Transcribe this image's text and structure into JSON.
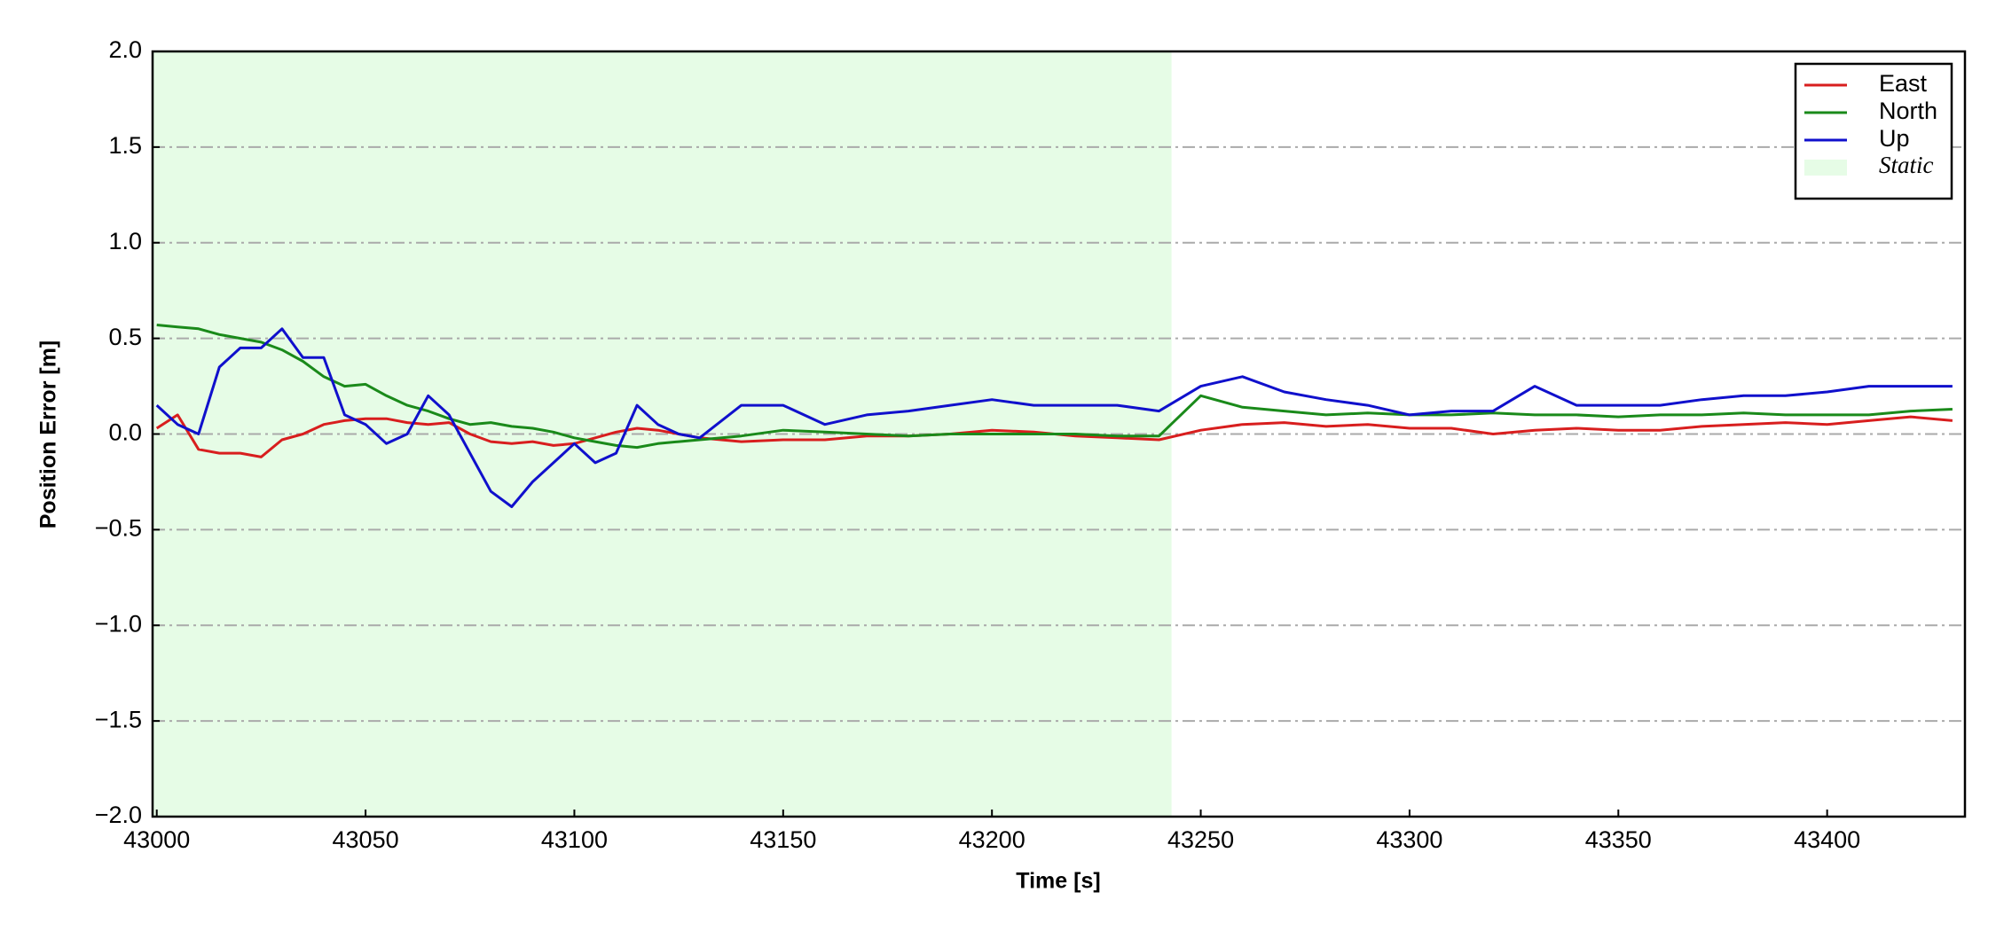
{
  "chart_data": {
    "type": "line",
    "xlabel": "Time [s]",
    "ylabel": "Position Error [m]",
    "x": [
      43000,
      43005,
      43010,
      43015,
      43020,
      43025,
      43030,
      43035,
      43040,
      43045,
      43050,
      43055,
      43060,
      43065,
      43070,
      43075,
      43080,
      43085,
      43090,
      43095,
      43100,
      43105,
      43110,
      43115,
      43120,
      43125,
      43130,
      43140,
      43150,
      43160,
      43170,
      43180,
      43190,
      43200,
      43210,
      43220,
      43230,
      43240,
      43250,
      43260,
      43270,
      43280,
      43290,
      43300,
      43310,
      43320,
      43330,
      43340,
      43350,
      43360,
      43370,
      43380,
      43390,
      43400,
      43410,
      43420,
      43430
    ],
    "series": [
      {
        "name": "East",
        "color": "#d81e1e",
        "values": [
          0.03,
          0.1,
          -0.08,
          -0.1,
          -0.1,
          -0.12,
          -0.03,
          0,
          0.05,
          0.07,
          0.08,
          0.08,
          0.06,
          0.05,
          0.06,
          0,
          -0.04,
          -0.05,
          -0.04,
          -0.06,
          -0.05,
          -0.02,
          0.01,
          0.03,
          0.02,
          0,
          -0.02,
          -0.04,
          -0.03,
          -0.03,
          -0.01,
          -0.01,
          0,
          0.02,
          0.01,
          -0.01,
          -0.02,
          -0.03,
          0.02,
          0.05,
          0.06,
          0.04,
          0.05,
          0.03,
          0.03,
          0,
          0.02,
          0.03,
          0.02,
          0.02,
          0.04,
          0.05,
          0.06,
          0.05,
          0.07,
          0.09,
          0.07
        ]
      },
      {
        "name": "North",
        "color": "#1a8a1a",
        "values": [
          0.57,
          0.56,
          0.55,
          0.52,
          0.5,
          0.48,
          0.44,
          0.38,
          0.3,
          0.25,
          0.26,
          0.2,
          0.15,
          0.12,
          0.08,
          0.05,
          0.06,
          0.04,
          0.03,
          0.01,
          -0.02,
          -0.04,
          -0.06,
          -0.07,
          -0.05,
          -0.04,
          -0.03,
          -0.01,
          0.02,
          0.01,
          0,
          -0.01,
          0,
          0,
          0,
          0,
          -0.01,
          -0.01,
          0.2,
          0.14,
          0.12,
          0.1,
          0.11,
          0.1,
          0.1,
          0.11,
          0.1,
          0.1,
          0.09,
          0.1,
          0.1,
          0.11,
          0.1,
          0.1,
          0.1,
          0.12,
          0.13
        ]
      },
      {
        "name": "Up",
        "color": "#1010cc",
        "values": [
          0.15,
          0.05,
          0,
          0.35,
          0.45,
          0.45,
          0.55,
          0.4,
          0.4,
          0.1,
          0.05,
          -0.05,
          0,
          0.2,
          0.1,
          -0.1,
          -0.3,
          -0.38,
          -0.25,
          -0.15,
          -0.05,
          -0.15,
          -0.1,
          0.15,
          0.05,
          0,
          -0.02,
          0.15,
          0.15,
          0.05,
          0.1,
          0.12,
          0.15,
          0.18,
          0.15,
          0.15,
          0.15,
          0.12,
          0.25,
          0.3,
          0.22,
          0.18,
          0.15,
          0.1,
          0.12,
          0.12,
          0.25,
          0.15,
          0.15,
          0.15,
          0.18,
          0.2,
          0.2,
          0.22,
          0.25,
          0.25,
          0.25
        ]
      }
    ],
    "shaded_regions": [
      {
        "name": "Static",
        "color": "#e6fce6",
        "x": [
          42999,
          43243
        ]
      }
    ],
    "xlim": [
      42999,
      43433
    ],
    "xticks": [
      43000,
      43050,
      43100,
      43150,
      43200,
      43250,
      43300,
      43350,
      43400
    ],
    "ylim": [
      -2,
      2
    ],
    "yticks": [
      {
        "value": -2,
        "label": "−2.0"
      },
      {
        "value": -1.5,
        "label": "−1.5"
      },
      {
        "value": -1,
        "label": "−1.0"
      },
      {
        "value": -0.5,
        "label": "−0.5"
      },
      {
        "value": 0,
        "label": "0.0"
      },
      {
        "value": 0.5,
        "label": "0.5"
      },
      {
        "value": 1,
        "label": "1.0"
      },
      {
        "value": 1.5,
        "label": "1.5"
      },
      {
        "value": 2,
        "label": "2.0"
      }
    ],
    "grid": true,
    "legend": "upper right"
  }
}
